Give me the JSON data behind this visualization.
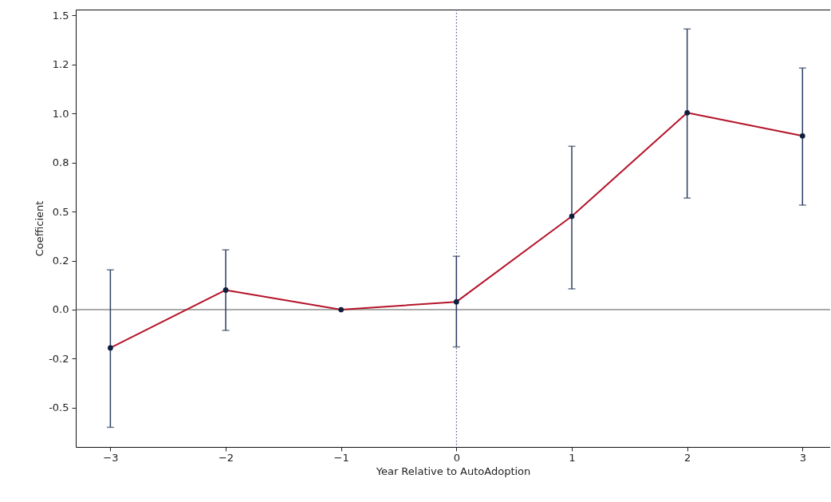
{
  "chart_data": {
    "type": "line",
    "xlabel": "Year Relative to AutoAdoption",
    "ylabel": "Coefficient",
    "x": [
      -3,
      -2,
      -1,
      0,
      1,
      2,
      3
    ],
    "series": [
      {
        "color": "#b5152b",
        "values": [
          -0.195,
          0.1,
          0,
          0.04,
          0.476,
          1.004,
          0.886
        ],
        "errors": [
          [
            -0.6,
            0.203
          ],
          [
            -0.106,
            0.305
          ],
          null,
          [
            -0.19,
            0.272
          ],
          [
            0.106,
            0.833
          ],
          [
            0.569,
            1.431
          ],
          [
            0.533,
            1.232
          ]
        ]
      }
    ],
    "marker": "circle",
    "grid": false,
    "xlim": [
      -3.3,
      3.24
    ],
    "ylim": [
      -0.7,
      1.53
    ],
    "xticks": [
      {
        "value": -3,
        "label": "−3"
      },
      {
        "value": -2,
        "label": "−2"
      },
      {
        "value": -1,
        "label": "−1"
      },
      0,
      1,
      2,
      3
    ],
    "yticks": [
      {
        "value": -0.5,
        "label": "-0.5"
      },
      {
        "value": -0.25,
        "label": "-0.2"
      },
      {
        "value": 0,
        "label": "0.0"
      },
      {
        "value": 0.25,
        "label": "0.2"
      },
      {
        "value": 0.5,
        "label": "0.5"
      },
      {
        "value": 0.75,
        "label": "0.8"
      },
      {
        "value": 1,
        "label": "1.0"
      },
      {
        "value": 1.25,
        "label": "1.2"
      },
      {
        "value": 1.5,
        "label": "1.5"
      }
    ],
    "ref_lines": [
      {
        "axis": "y",
        "value": 0,
        "color": "#555555",
        "line_style": "solid"
      },
      {
        "axis": "x",
        "value": 0,
        "color": "#2c3e63",
        "line_style": "dotted"
      }
    ]
  }
}
